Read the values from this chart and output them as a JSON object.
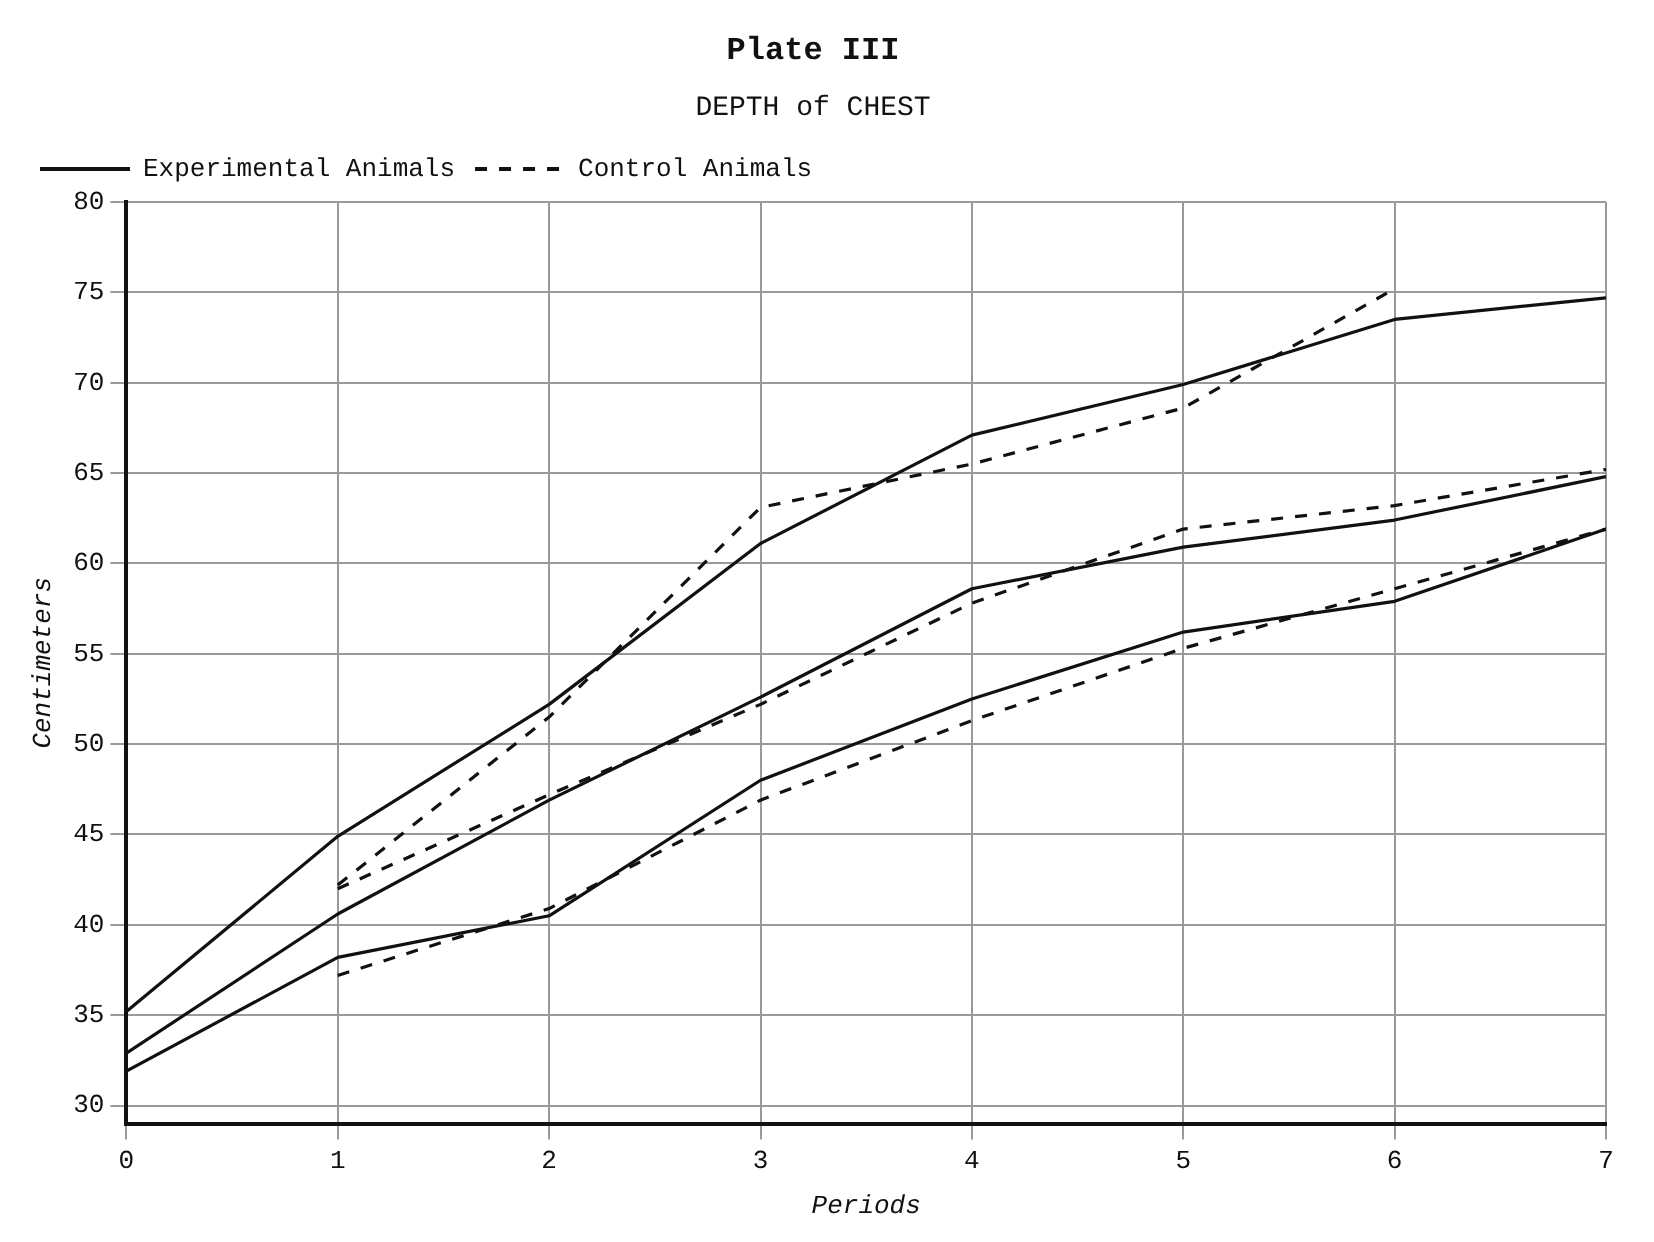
{
  "chart_data": {
    "type": "line",
    "title": "Plate III",
    "subtitle": "DEPTH of CHEST",
    "xlabel": "Periods",
    "ylabel": "Centimeters",
    "x": [
      0,
      1,
      2,
      3,
      4,
      5,
      6,
      7
    ],
    "xlim": [
      0,
      7
    ],
    "xticks": [
      0,
      1,
      2,
      3,
      4,
      5,
      6,
      7
    ],
    "ylim": [
      29,
      80
    ],
    "yticks": [
      30,
      35,
      40,
      45,
      50,
      55,
      60,
      65,
      70,
      75,
      80
    ],
    "grid": true,
    "legend": "top left",
    "marker": "none",
    "series": [
      {
        "name": "Experimental Animals",
        "color": "#111111",
        "line_style": "solid",
        "values": [
          35.2,
          44.9,
          52.2,
          61.1,
          67.1,
          69.9,
          73.5,
          74.7
        ]
      },
      {
        "name": "Control Animals",
        "color": "#111111",
        "line_style": "dashed",
        "values": [
          null,
          42.2,
          51.5,
          63.1,
          65.5,
          68.6,
          75.2,
          null
        ]
      },
      {
        "color": "#111111",
        "line_style": "solid",
        "values": [
          32.9,
          40.6,
          46.9,
          52.6,
          58.6,
          60.9,
          62.4,
          64.8
        ]
      },
      {
        "color": "#111111",
        "line_style": "dashed",
        "values": [
          null,
          42.0,
          47.2,
          52.2,
          57.8,
          61.9,
          63.2,
          65.2
        ]
      },
      {
        "color": "#111111",
        "line_style": "solid",
        "values": [
          31.9,
          38.2,
          40.5,
          48.0,
          52.5,
          56.2,
          57.9,
          61.9
        ]
      },
      {
        "color": "#111111",
        "line_style": "dashed",
        "values": [
          null,
          37.2,
          40.9,
          46.9,
          51.3,
          55.3,
          58.6,
          61.9
        ]
      }
    ]
  }
}
